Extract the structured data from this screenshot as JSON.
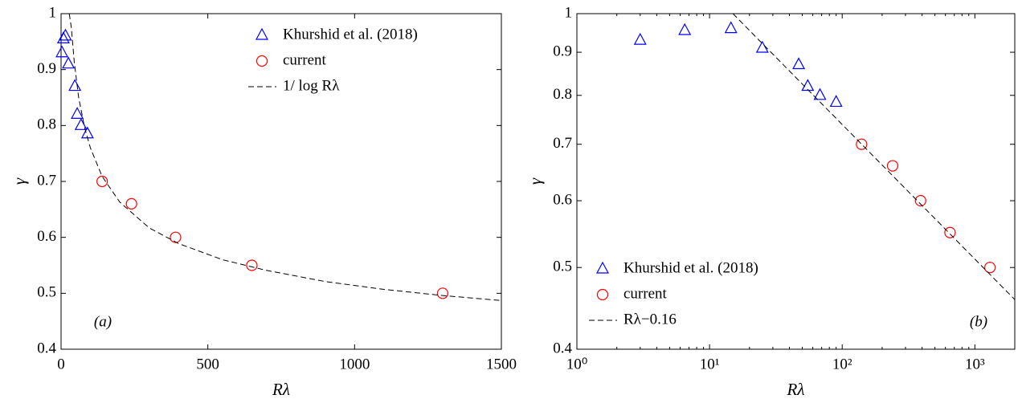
{
  "chart_data": [
    {
      "type": "scatter",
      "xlabel": "Rλ",
      "ylabel": "γ",
      "annotation": "(a)",
      "xlim": [
        0,
        1500
      ],
      "xticks": [
        0,
        500,
        1000,
        1500
      ],
      "ylim": [
        0.4,
        1
      ],
      "yticks": [
        0.4,
        0.5,
        0.6,
        0.7,
        0.8,
        0.9,
        1
      ],
      "xscale": "linear",
      "yscale": "linear",
      "legend": "upper right",
      "series": [
        {
          "name": "Khurshid et al. (2018)",
          "color": "#0000ff",
          "marker": "triangle",
          "x": [
            3,
            8,
            15,
            25,
            47,
            55,
            68,
            90
          ],
          "values": [
            0.93,
            0.955,
            0.96,
            0.91,
            0.87,
            0.82,
            0.8,
            0.785
          ]
        },
        {
          "name": "current",
          "color": "#ff0000",
          "marker": "circle",
          "x": [
            140,
            240,
            390,
            650,
            1300
          ],
          "values": [
            0.7,
            0.66,
            0.6,
            0.55,
            0.5
          ]
        },
        {
          "name": "1/ log Rλ",
          "color": "#000000",
          "marker": "dashed",
          "x": [
            28,
            35,
            45,
            60,
            80,
            100,
            140,
            200,
            300,
            400,
            550,
            700,
            900,
            1100,
            1300,
            1500
          ],
          "values": [
            1.0,
            0.975,
            0.914,
            0.85,
            0.797,
            0.76,
            0.709,
            0.663,
            0.617,
            0.589,
            0.56,
            0.541,
            0.521,
            0.507,
            0.496,
            0.487
          ]
        }
      ]
    },
    {
      "type": "scatter",
      "xlabel": "Rλ",
      "ylabel": "γ",
      "annotation": "(b)",
      "xlim": [
        1,
        2000
      ],
      "xticks": [
        {
          "value": 1,
          "label": "10⁰"
        },
        {
          "value": 10,
          "label": "10¹"
        },
        {
          "value": 100,
          "label": "10²"
        },
        {
          "value": 1000,
          "label": "10³"
        }
      ],
      "ylim": [
        0.4,
        1
      ],
      "yticks": [
        0.4,
        0.5,
        0.6,
        0.7,
        0.8,
        0.9,
        1
      ],
      "xscale": "log",
      "yscale": "log",
      "legend": "lower left",
      "series": [
        {
          "name": "Khurshid et al. (2018)",
          "color": "#0000ff",
          "marker": "triangle",
          "x": [
            3,
            6.5,
            14.5,
            25,
            47,
            55,
            68,
            90
          ],
          "values": [
            0.93,
            0.955,
            0.96,
            0.91,
            0.87,
            0.82,
            0.8,
            0.785
          ]
        },
        {
          "name": "current",
          "color": "#ff0000",
          "marker": "circle",
          "x": [
            140,
            240,
            390,
            650,
            1300
          ],
          "values": [
            0.7,
            0.66,
            0.6,
            0.55,
            0.5
          ]
        },
        {
          "name": "Rλ−0.16",
          "color": "#000000",
          "marker": "dashed",
          "x": [
            15,
            2000
          ],
          "values": [
            1.0,
            0.458
          ]
        }
      ]
    }
  ]
}
